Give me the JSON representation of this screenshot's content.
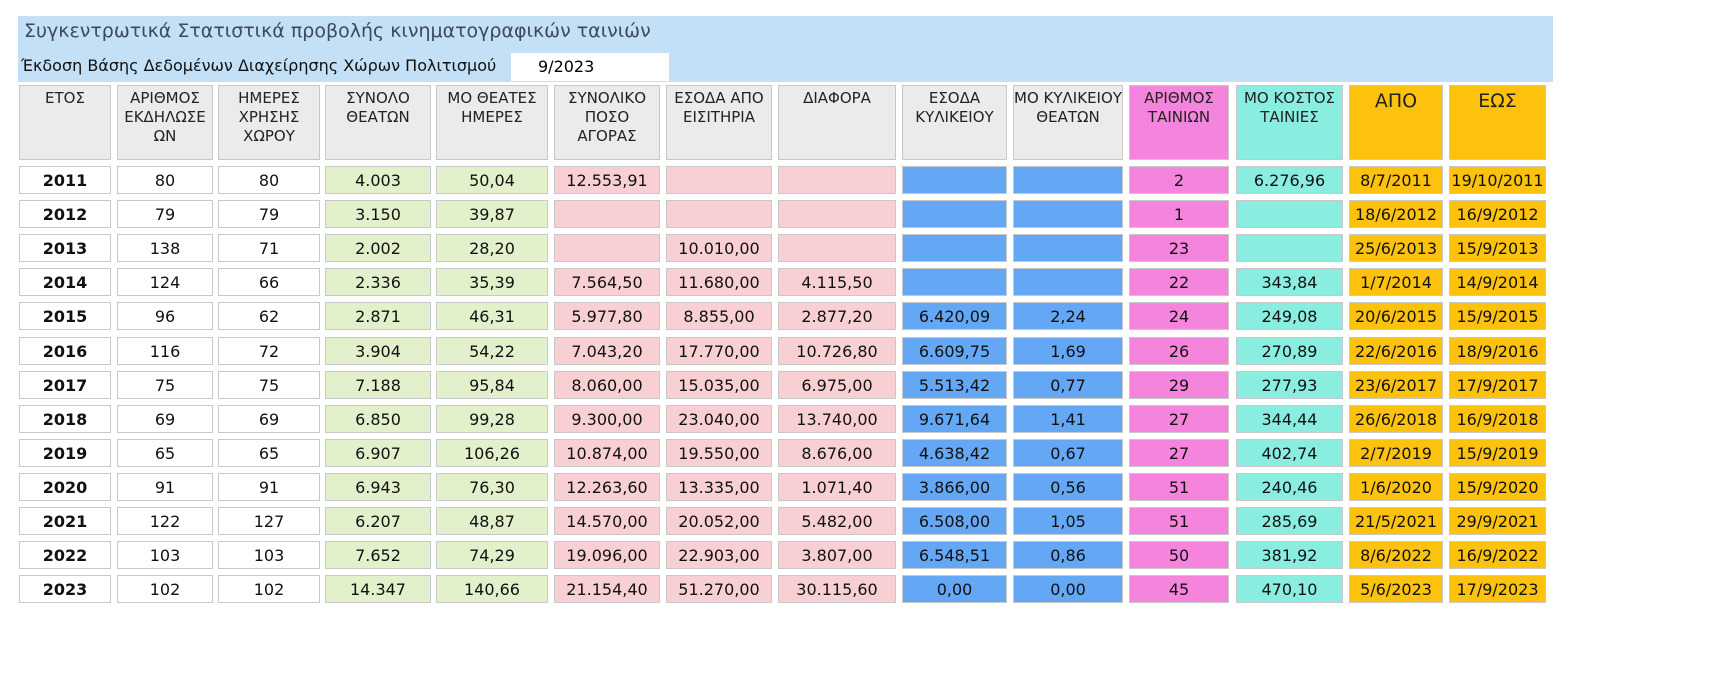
{
  "title": "Συγκεντρωτικά Στατιστικά προβολής κινηματογραφικών ταινιών",
  "version_label": "Έκδοση Βάσης Δεδομένων Διαχείρησης Χώρων Πολιτισμού",
  "version_value": "9/2023",
  "colors": {
    "header_gray": "#ebebeb",
    "white": "#ffffff",
    "green": "#e2f0cb",
    "pink": "#f8d0d3",
    "blue": "#64a7f4",
    "magenta": "#f484dc",
    "teal": "#89ede0",
    "orange": "#fcc20e"
  },
  "columns": [
    {
      "label": "ΕΤΟΣ",
      "color": "white",
      "hcolor": "header_gray"
    },
    {
      "label": "ΑΡΙΘΜΟΣ ΕΚΔΗΛΩΣΕ ΩΝ",
      "color": "white",
      "hcolor": "header_gray"
    },
    {
      "label": "ΗΜΕΡΕΣ ΧΡΗΣΗΣ ΧΩΡΟΥ",
      "color": "white",
      "hcolor": "header_gray"
    },
    {
      "label": "ΣΥΝΟΛΟ ΘΕΑΤΩΝ",
      "color": "green",
      "hcolor": "header_gray"
    },
    {
      "label": "ΜΟ ΘΕΑΤΕΣ ΗΜΕΡΕΣ",
      "color": "green",
      "hcolor": "header_gray"
    },
    {
      "label": "ΣΥΝΟΛΙΚΟ ΠΟΣΟ ΑΓΟΡΑΣ",
      "color": "pink",
      "hcolor": "header_gray"
    },
    {
      "label": "ΕΣΟΔΑ ΑΠΟ ΕΙΣΙΤΗΡΙΑ",
      "color": "pink",
      "hcolor": "header_gray"
    },
    {
      "label": "ΔΙΑΦΟΡΑ",
      "color": "pink",
      "hcolor": "header_gray"
    },
    {
      "label": "ΕΣΟΔΑ ΚΥΛΙΚΕΙΟΥ",
      "color": "blue",
      "hcolor": "header_gray"
    },
    {
      "label": "ΜΟ ΚΥΛΙΚΕΙΟΥ ΘΕΑΤΩΝ",
      "color": "blue",
      "hcolor": "header_gray"
    },
    {
      "label": "ΑΡΙΘΜΟΣ ΤΑΙΝΙΩΝ",
      "color": "magenta",
      "hcolor": "magenta"
    },
    {
      "label": "ΜΟ ΚΟΣΤΟΣ ΤΑΙΝΙΕΣ",
      "color": "teal",
      "hcolor": "teal"
    },
    {
      "label": "ΑΠΟ",
      "color": "orange",
      "hcolor": "orange"
    },
    {
      "label": "ΕΩΣ",
      "color": "orange",
      "hcolor": "orange"
    }
  ],
  "rows": [
    [
      "2011",
      "80",
      "80",
      "4.003",
      "50,04",
      "12.553,91",
      "",
      "",
      "",
      "",
      "2",
      "6.276,96",
      "8/7/2011",
      "19/10/2011"
    ],
    [
      "2012",
      "79",
      "79",
      "3.150",
      "39,87",
      "",
      "",
      "",
      "",
      "",
      "1",
      "",
      "18/6/2012",
      "16/9/2012"
    ],
    [
      "2013",
      "138",
      "71",
      "2.002",
      "28,20",
      "",
      "10.010,00",
      "",
      "",
      "",
      "23",
      "",
      "25/6/2013",
      "15/9/2013"
    ],
    [
      "2014",
      "124",
      "66",
      "2.336",
      "35,39",
      "7.564,50",
      "11.680,00",
      "4.115,50",
      "",
      "",
      "22",
      "343,84",
      "1/7/2014",
      "14/9/2014"
    ],
    [
      "2015",
      "96",
      "62",
      "2.871",
      "46,31",
      "5.977,80",
      "8.855,00",
      "2.877,20",
      "6.420,09",
      "2,24",
      "24",
      "249,08",
      "20/6/2015",
      "15/9/2015"
    ],
    [
      "2016",
      "116",
      "72",
      "3.904",
      "54,22",
      "7.043,20",
      "17.770,00",
      "10.726,80",
      "6.609,75",
      "1,69",
      "26",
      "270,89",
      "22/6/2016",
      "18/9/2016"
    ],
    [
      "2017",
      "75",
      "75",
      "7.188",
      "95,84",
      "8.060,00",
      "15.035,00",
      "6.975,00",
      "5.513,42",
      "0,77",
      "29",
      "277,93",
      "23/6/2017",
      "17/9/2017"
    ],
    [
      "2018",
      "69",
      "69",
      "6.850",
      "99,28",
      "9.300,00",
      "23.040,00",
      "13.740,00",
      "9.671,64",
      "1,41",
      "27",
      "344,44",
      "26/6/2018",
      "16/9/2018"
    ],
    [
      "2019",
      "65",
      "65",
      "6.907",
      "106,26",
      "10.874,00",
      "19.550,00",
      "8.676,00",
      "4.638,42",
      "0,67",
      "27",
      "402,74",
      "2/7/2019",
      "15/9/2019"
    ],
    [
      "2020",
      "91",
      "91",
      "6.943",
      "76,30",
      "12.263,60",
      "13.335,00",
      "1.071,40",
      "3.866,00",
      "0,56",
      "51",
      "240,46",
      "1/6/2020",
      "15/9/2020"
    ],
    [
      "2021",
      "122",
      "127",
      "6.207",
      "48,87",
      "14.570,00",
      "20.052,00",
      "5.482,00",
      "6.508,00",
      "1,05",
      "51",
      "285,69",
      "21/5/2021",
      "29/9/2021"
    ],
    [
      "2022",
      "103",
      "103",
      "7.652",
      "74,29",
      "19.096,00",
      "22.903,00",
      "3.807,00",
      "6.548,51",
      "0,86",
      "50",
      "381,92",
      "8/6/2022",
      "16/9/2022"
    ],
    [
      "2023",
      "102",
      "102",
      "14.347",
      "140,66",
      "21.154,40",
      "51.270,00",
      "30.115,60",
      "0,00",
      "0,00",
      "45",
      "470,10",
      "5/6/2023",
      "17/9/2023"
    ]
  ]
}
